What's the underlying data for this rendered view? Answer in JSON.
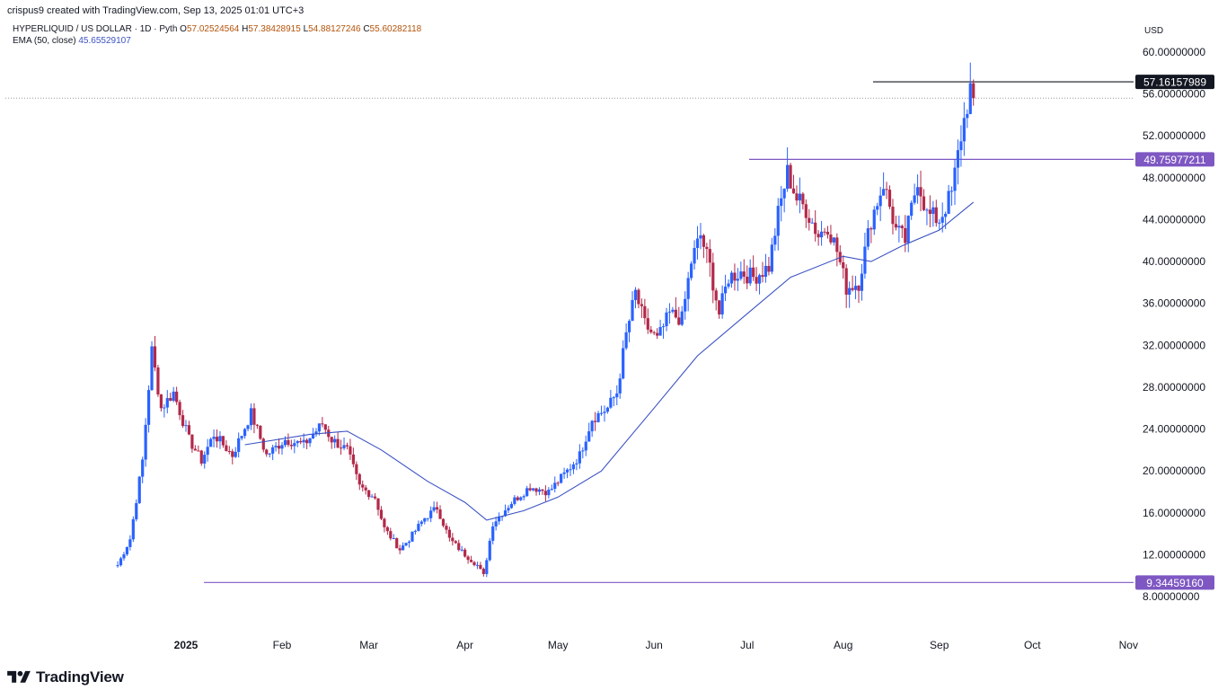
{
  "header": {
    "attribution": "crispus9 created with TradingView.com, Sep 13, 2025 01:01 UTC+3"
  },
  "legend": {
    "symbol": "HYPERLIQUID / US DOLLAR · 1D · Pyth",
    "open_label": "O",
    "open": "57.02524564",
    "high_label": "H",
    "high": "57.38428915",
    "low_label": "L",
    "low": "54.88127246",
    "close_label": "C",
    "close": "55.60282118",
    "ema_label": "EMA (50, close)",
    "ema_value": "45.65529107"
  },
  "footer": {
    "brand": "TradingView"
  },
  "chart_data": {
    "type": "candlestick",
    "currency": "USD",
    "ylim": [
      6,
      62
    ],
    "y_ticks": [
      "60.00000000",
      "56.00000000",
      "52.00000000",
      "48.00000000",
      "44.00000000",
      "40.00000000",
      "36.00000000",
      "32.00000000",
      "28.00000000",
      "24.00000000",
      "20.00000000",
      "16.00000000",
      "12.00000000",
      "8.00000000"
    ],
    "x_ticks": [
      "2025",
      "Feb",
      "Mar",
      "Apr",
      "May",
      "Jun",
      "Jul",
      "Aug",
      "Sep",
      "Oct",
      "Nov"
    ],
    "horizontal_lines": [
      {
        "price": 57.16157989,
        "label": "57.16157989",
        "color": "#131722"
      },
      {
        "price": 49.75977211,
        "label": "49.75977211",
        "color": "#7e57c2"
      },
      {
        "price": 9.3445916,
        "label": "9.34459160",
        "color": "#7e57c2"
      }
    ],
    "last_price_line": 55.6,
    "colors": {
      "up": "#2962ff",
      "down": "#b2294a",
      "ema": "#3b52c4"
    },
    "series": [
      {
        "name": "HYPERLIQUID / US DOLLAR",
        "anchors": [
          [
            "2024-12-10",
            11.0
          ],
          [
            "2024-12-14",
            13.5
          ],
          [
            "2024-12-18",
            21.0
          ],
          [
            "2024-12-21",
            31.5
          ],
          [
            "2024-12-24",
            26.0
          ],
          [
            "2024-12-28",
            27.5
          ],
          [
            "2025-01-02",
            23.0
          ],
          [
            "2025-01-06",
            21.0
          ],
          [
            "2025-01-10",
            23.5
          ],
          [
            "2025-01-16",
            21.5
          ],
          [
            "2025-01-22",
            25.5
          ],
          [
            "2025-01-27",
            21.5
          ],
          [
            "2025-02-02",
            23.0
          ],
          [
            "2025-02-08",
            22.5
          ],
          [
            "2025-02-14",
            24.5
          ],
          [
            "2025-02-17",
            23.0
          ],
          [
            "2025-02-22",
            22.0
          ],
          [
            "2025-02-26",
            18.5
          ],
          [
            "2025-03-03",
            17.5
          ],
          [
            "2025-03-06",
            14.5
          ],
          [
            "2025-03-11",
            12.5
          ],
          [
            "2025-03-14",
            13.5
          ],
          [
            "2025-03-19",
            15.5
          ],
          [
            "2025-03-23",
            16.5
          ],
          [
            "2025-03-27",
            13.5
          ],
          [
            "2025-04-01",
            12.0
          ],
          [
            "2025-04-05",
            11.0
          ],
          [
            "2025-04-07",
            10.0
          ],
          [
            "2025-04-10",
            15.0
          ],
          [
            "2025-04-16",
            17.0
          ],
          [
            "2025-04-22",
            18.5
          ],
          [
            "2025-04-28",
            18.0
          ],
          [
            "2025-05-04",
            20.0
          ],
          [
            "2025-05-08",
            21.5
          ],
          [
            "2025-05-12",
            25.0
          ],
          [
            "2025-05-17",
            26.0
          ],
          [
            "2025-05-20",
            27.5
          ],
          [
            "2025-05-23",
            33.0
          ],
          [
            "2025-05-26",
            37.0
          ],
          [
            "2025-05-29",
            34.0
          ],
          [
            "2025-06-02",
            32.5
          ],
          [
            "2025-06-06",
            35.0
          ],
          [
            "2025-06-10",
            34.5
          ],
          [
            "2025-06-13",
            40.0
          ],
          [
            "2025-06-16",
            42.5
          ],
          [
            "2025-06-19",
            39.5
          ],
          [
            "2025-06-22",
            35.0
          ],
          [
            "2025-06-25",
            38.5
          ],
          [
            "2025-06-29",
            39.0
          ],
          [
            "2025-07-03",
            38.5
          ],
          [
            "2025-07-08",
            39.5
          ],
          [
            "2025-07-11",
            44.5
          ],
          [
            "2025-07-14",
            48.5
          ],
          [
            "2025-07-17",
            46.0
          ],
          [
            "2025-07-20",
            45.0
          ],
          [
            "2025-07-24",
            42.5
          ],
          [
            "2025-07-27",
            43.5
          ],
          [
            "2025-07-30",
            41.0
          ],
          [
            "2025-08-02",
            37.5
          ],
          [
            "2025-08-06",
            38.0
          ],
          [
            "2025-08-10",
            44.0
          ],
          [
            "2025-08-14",
            47.5
          ],
          [
            "2025-08-18",
            43.0
          ],
          [
            "2025-08-21",
            42.0
          ],
          [
            "2025-08-25",
            48.0
          ],
          [
            "2025-08-28",
            44.5
          ],
          [
            "2025-09-01",
            44.0
          ],
          [
            "2025-09-05",
            46.5
          ],
          [
            "2025-09-08",
            52.0
          ],
          [
            "2025-09-11",
            56.5
          ],
          [
            "2025-09-12",
            55.6
          ]
        ]
      },
      {
        "name": "EMA (50, close)",
        "points": [
          [
            "2025-01-20",
            22.5
          ],
          [
            "2025-02-10",
            23.5
          ],
          [
            "2025-02-22",
            23.8
          ],
          [
            "2025-03-05",
            22.0
          ],
          [
            "2025-03-20",
            19.0
          ],
          [
            "2025-04-01",
            17.0
          ],
          [
            "2025-04-08",
            15.3
          ],
          [
            "2025-04-20",
            16.2
          ],
          [
            "2025-05-01",
            17.5
          ],
          [
            "2025-05-15",
            20.0
          ],
          [
            "2025-06-01",
            26.0
          ],
          [
            "2025-06-15",
            31.0
          ],
          [
            "2025-07-01",
            35.0
          ],
          [
            "2025-07-15",
            38.5
          ],
          [
            "2025-08-01",
            40.5
          ],
          [
            "2025-08-10",
            40.0
          ],
          [
            "2025-08-20",
            41.5
          ],
          [
            "2025-09-01",
            43.0
          ],
          [
            "2025-09-12",
            45.66
          ]
        ]
      }
    ]
  }
}
